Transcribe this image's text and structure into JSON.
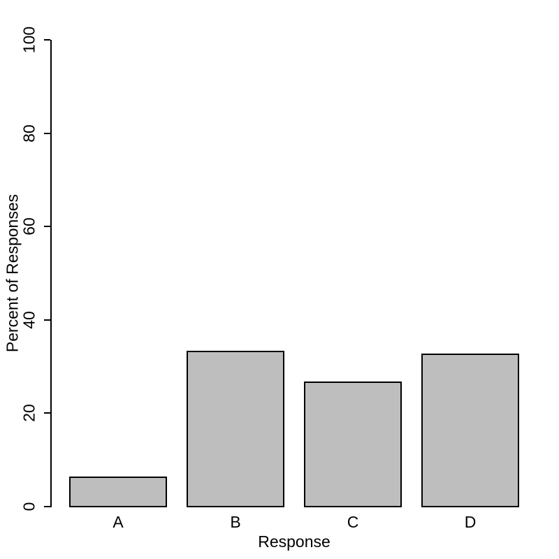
{
  "chart_data": {
    "type": "bar",
    "categories": [
      "A",
      "B",
      "C",
      "D"
    ],
    "values": [
      6.6,
      33.5,
      27.0,
      33.0
    ],
    "title": "",
    "xlabel": "Response",
    "ylabel": "Percent of Responses",
    "ylim": [
      0,
      100
    ],
    "yticks": [
      0,
      20,
      40,
      60,
      80,
      100
    ],
    "grid": false,
    "legend": "none",
    "bar_fill_color": "#BEBEBE",
    "bar_border_color": "#000000",
    "background_color": "#FFFFFF",
    "text_color": "#000000"
  }
}
